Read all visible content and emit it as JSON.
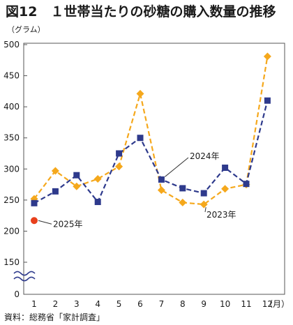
{
  "title": "図12　１世帯当たりの砂糖の購入数量の推移",
  "unit_label": "（グラム）",
  "source": "資料：総務省「家計調査」",
  "chart_data": {
    "type": "line",
    "categories": [
      "1",
      "2",
      "3",
      "4",
      "5",
      "6",
      "7",
      "8",
      "9",
      "10",
      "11",
      "12"
    ],
    "x_unit_label": "（月）",
    "y_ticks": [
      0,
      150,
      200,
      250,
      300,
      350,
      400,
      450,
      500
    ],
    "y_axis_break": true,
    "grid": false,
    "series": [
      {
        "name": "2023年",
        "color": "#f5a81c",
        "style": "dashed",
        "marker": "diamond",
        "values": [
          252,
          297,
          272,
          284,
          304,
          421,
          266,
          246,
          243,
          268,
          275,
          481
        ]
      },
      {
        "name": "2024年",
        "color": "#2e3a8c",
        "style": "dashed",
        "marker": "square",
        "values": [
          245,
          264,
          290,
          247,
          325,
          350,
          283,
          269,
          261,
          302,
          276,
          410
        ]
      },
      {
        "name": "2025年",
        "color": "#e8401c",
        "style": "none",
        "marker": "circle",
        "values": [
          217,
          null,
          null,
          null,
          null,
          null,
          null,
          null,
          null,
          null,
          null,
          null
        ]
      }
    ]
  }
}
